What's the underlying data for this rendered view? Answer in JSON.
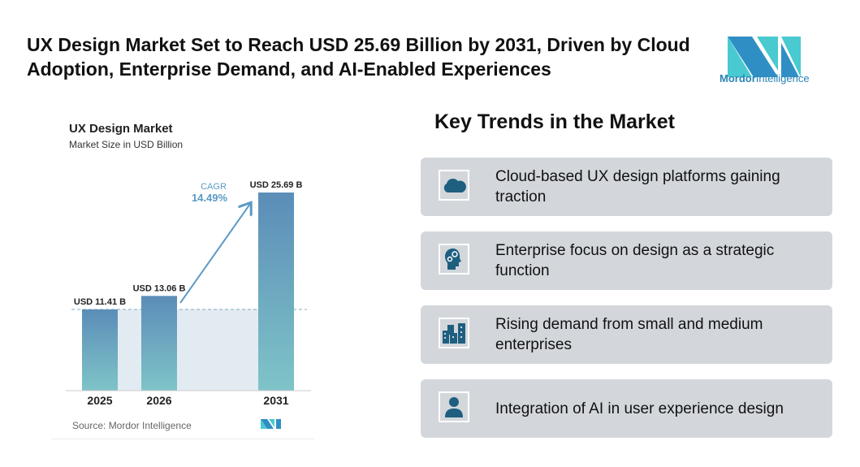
{
  "title": "UX Design Market Set to Reach USD 25.69 Billion by 2031, Driven by Cloud Adoption, Enterprise Demand, and AI-Enabled Experiences",
  "logo": {
    "text_bold": "Mordor",
    "text": "Intelligence"
  },
  "chart_data": {
    "type": "bar",
    "title": "UX Design Market",
    "subtitle": "Market Size in USD Billion",
    "categories": [
      "2025",
      "2026",
      "2031"
    ],
    "values": [
      11.41,
      13.06,
      25.69
    ],
    "data_labels": [
      "USD 11.41 B",
      "USD 13.06 B",
      "USD 25.69 B"
    ],
    "annotation": {
      "label": "CAGR",
      "value": "14.49%"
    },
    "source": "Source: Mordor Intelligence",
    "colors": {
      "bar_top": "#5b8db8",
      "bar_bottom": "#7fc4c8",
      "cagr": "#5b9ac4",
      "band": "#e3ebf2"
    }
  },
  "trends": {
    "title": "Key Trends in the Market",
    "items": [
      {
        "icon": "cloud-icon",
        "text": "Cloud-based UX design platforms gaining traction"
      },
      {
        "icon": "head-gears-icon",
        "text": "Enterprise focus on design as a strategic function"
      },
      {
        "icon": "buildings-icon",
        "text": "Rising demand from small and medium enterprises"
      },
      {
        "icon": "user-icon",
        "text": "Integration of AI in user experience design"
      }
    ]
  }
}
